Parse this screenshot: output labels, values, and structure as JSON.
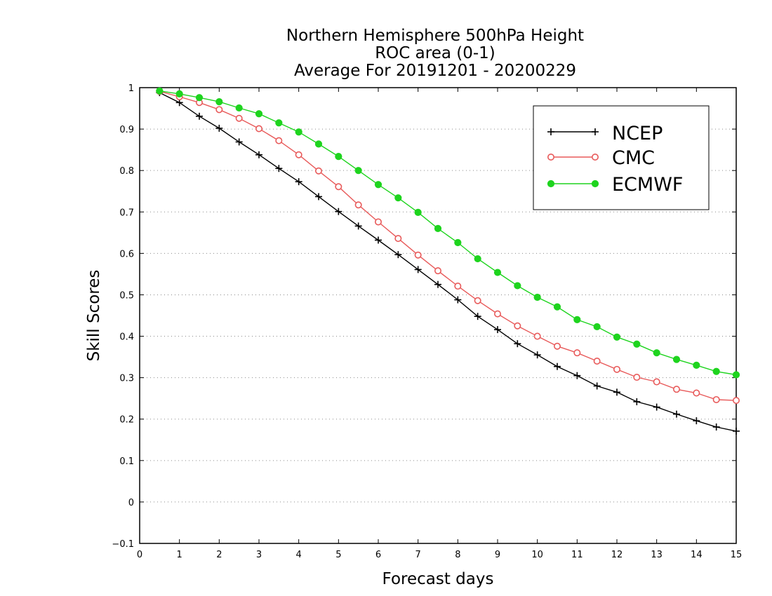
{
  "chart_data": {
    "type": "line",
    "title_lines": [
      "Northern Hemisphere 500hPa Height",
      "ROC area (0-1)",
      "Average For 20191201 - 20200229"
    ],
    "xlabel": "Forecast days",
    "ylabel": "Skill Scores",
    "xlim": [
      0,
      15
    ],
    "ylim": [
      -0.1,
      1
    ],
    "xticks": [
      0,
      1,
      2,
      3,
      4,
      5,
      6,
      7,
      8,
      9,
      10,
      11,
      12,
      13,
      14,
      15
    ],
    "xtick_labels": [
      "0",
      "1",
      "2",
      "3",
      "4",
      "5",
      "6",
      "7",
      "8",
      "9",
      "10",
      "11",
      "12",
      "13",
      "14",
      "15"
    ],
    "yticks": [
      -0.1,
      0,
      0.1,
      0.2,
      0.3,
      0.4,
      0.5,
      0.6,
      0.7,
      0.8,
      0.9,
      1
    ],
    "ytick_labels": [
      "−0.1",
      "0",
      "0.1",
      "0.2",
      "0.3",
      "0.4",
      "0.5",
      "0.6",
      "0.7",
      "0.8",
      "0.9",
      "1"
    ],
    "grid": "horizontal dotted",
    "legend_position": "top-right",
    "x": [
      0.5,
      1,
      1.5,
      2,
      2.5,
      3,
      3.5,
      4,
      4.5,
      5,
      5.5,
      6,
      6.5,
      7,
      7.5,
      8,
      8.5,
      9,
      9.5,
      10,
      10.5,
      11,
      11.5,
      12,
      12.5,
      13,
      13.5,
      14,
      14.5,
      15
    ],
    "series": [
      {
        "name": "NCEP",
        "color": "#000000",
        "marker": "plus",
        "values": [
          0.988,
          0.964,
          0.931,
          0.902,
          0.869,
          0.838,
          0.805,
          0.773,
          0.737,
          0.701,
          0.666,
          0.632,
          0.597,
          0.561,
          0.525,
          0.488,
          0.448,
          0.416,
          0.382,
          0.355,
          0.327,
          0.305,
          0.28,
          0.265,
          0.242,
          0.229,
          0.212,
          0.196,
          0.181,
          0.171
        ]
      },
      {
        "name": "CMC",
        "color": "#e85a5a",
        "marker": "open-circle",
        "values": [
          0.991,
          0.978,
          0.964,
          0.947,
          0.926,
          0.901,
          0.872,
          0.838,
          0.799,
          0.761,
          0.717,
          0.676,
          0.636,
          0.596,
          0.558,
          0.521,
          0.486,
          0.454,
          0.425,
          0.4,
          0.376,
          0.36,
          0.34,
          0.32,
          0.301,
          0.29,
          0.272,
          0.263,
          0.247,
          0.245
        ]
      },
      {
        "name": "ECMWF",
        "color": "#1ed41e",
        "marker": "filled-circle",
        "values": [
          0.992,
          0.985,
          0.976,
          0.966,
          0.951,
          0.937,
          0.915,
          0.893,
          0.864,
          0.834,
          0.8,
          0.766,
          0.734,
          0.699,
          0.66,
          0.626,
          0.587,
          0.554,
          0.522,
          0.494,
          0.471,
          0.44,
          0.423,
          0.398,
          0.381,
          0.36,
          0.344,
          0.33,
          0.315,
          0.307
        ]
      }
    ]
  }
}
